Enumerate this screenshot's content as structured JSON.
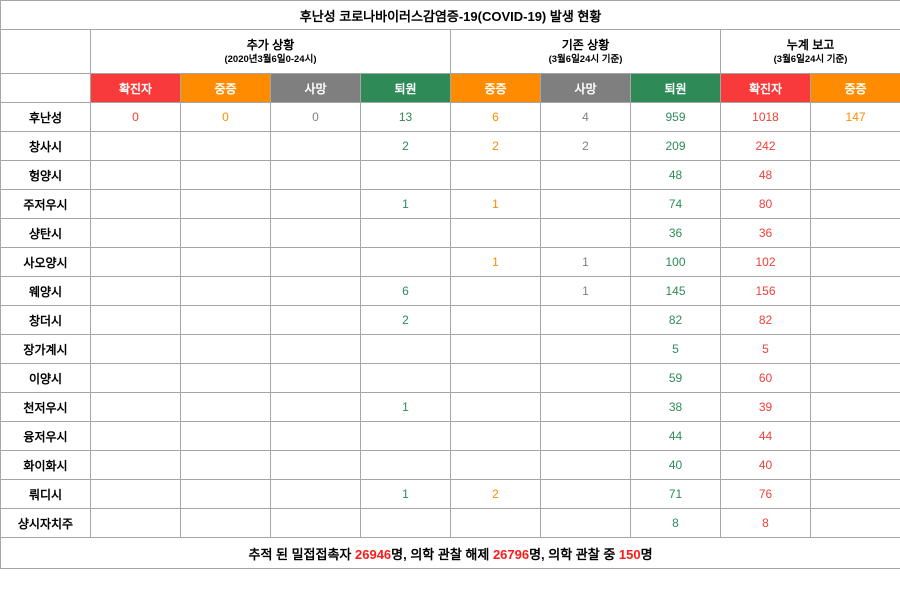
{
  "title": "후난성 코로나바이러스감염증-19(COVID-19) 발생 현황",
  "colors": {
    "red": "#f93a3a",
    "orange": "#ff8c00",
    "gray": "#7f7f7f",
    "green": "#2e8b57"
  },
  "value_colors": {
    "red": "#f04038",
    "orange": "#ff8c00",
    "gray": "#808080",
    "green": "#2e8b57"
  },
  "column_groups": [
    {
      "label": "추가 상황",
      "sub": "(2020년3월6일0-24시)",
      "columns": [
        {
          "label": "확진자",
          "color": "red"
        },
        {
          "label": "중증",
          "color": "orange"
        },
        {
          "label": "사망",
          "color": "gray"
        },
        {
          "label": "퇴원",
          "color": "green"
        }
      ]
    },
    {
      "label": "기존 상황",
      "sub": "(3월6일24시 기준)",
      "columns": [
        {
          "label": "중증",
          "color": "orange"
        },
        {
          "label": "사망",
          "color": "gray"
        },
        {
          "label": "퇴원",
          "color": "green"
        }
      ]
    },
    {
      "label": "누계 보고",
      "sub": "(3월6일24시 기준)",
      "columns": [
        {
          "label": "확진자",
          "color": "red"
        },
        {
          "label": "중증",
          "color": "orange"
        }
      ]
    }
  ],
  "rows": [
    {
      "region": "후난성",
      "values": [
        "0",
        "0",
        "0",
        "13",
        "6",
        "4",
        "959",
        "1018",
        "147"
      ]
    },
    {
      "region": "창사시",
      "values": [
        "",
        "",
        "",
        "2",
        "2",
        "2",
        "209",
        "242",
        ""
      ]
    },
    {
      "region": "헝양시",
      "values": [
        "",
        "",
        "",
        "",
        "",
        "",
        "48",
        "48",
        ""
      ]
    },
    {
      "region": "주저우시",
      "values": [
        "",
        "",
        "",
        "1",
        "1",
        "",
        "74",
        "80",
        ""
      ]
    },
    {
      "region": "샹탄시",
      "values": [
        "",
        "",
        "",
        "",
        "",
        "",
        "36",
        "36",
        ""
      ]
    },
    {
      "region": "사오양시",
      "values": [
        "",
        "",
        "",
        "",
        "1",
        "1",
        "100",
        "102",
        ""
      ]
    },
    {
      "region": "웨양시",
      "values": [
        "",
        "",
        "",
        "6",
        "",
        "1",
        "145",
        "156",
        ""
      ]
    },
    {
      "region": "창더시",
      "values": [
        "",
        "",
        "",
        "2",
        "",
        "",
        "82",
        "82",
        ""
      ]
    },
    {
      "region": "장가계시",
      "values": [
        "",
        "",
        "",
        "",
        "",
        "",
        "5",
        "5",
        ""
      ]
    },
    {
      "region": "이양시",
      "values": [
        "",
        "",
        "",
        "",
        "",
        "",
        "59",
        "60",
        ""
      ]
    },
    {
      "region": "천저우시",
      "values": [
        "",
        "",
        "",
        "1",
        "",
        "",
        "38",
        "39",
        ""
      ]
    },
    {
      "region": "융저우시",
      "values": [
        "",
        "",
        "",
        "",
        "",
        "",
        "44",
        "44",
        ""
      ]
    },
    {
      "region": "화이화시",
      "values": [
        "",
        "",
        "",
        "",
        "",
        "",
        "40",
        "40",
        ""
      ]
    },
    {
      "region": "뤄디시",
      "values": [
        "",
        "",
        "",
        "1",
        "2",
        "",
        "71",
        "76",
        ""
      ]
    },
    {
      "region": "샹시자치주",
      "values": [
        "",
        "",
        "",
        "",
        "",
        "",
        "8",
        "8",
        ""
      ]
    }
  ],
  "footer": {
    "segments": [
      {
        "text": "추적 된 밀접접촉자 ",
        "red": false
      },
      {
        "text": "26946",
        "red": true
      },
      {
        "text": "명, 의학 관찰 해제 ",
        "red": false
      },
      {
        "text": "26796",
        "red": true
      },
      {
        "text": "명, 의학 관찰 중 ",
        "red": false
      },
      {
        "text": "150",
        "red": true
      },
      {
        "text": "명",
        "red": false
      }
    ]
  }
}
